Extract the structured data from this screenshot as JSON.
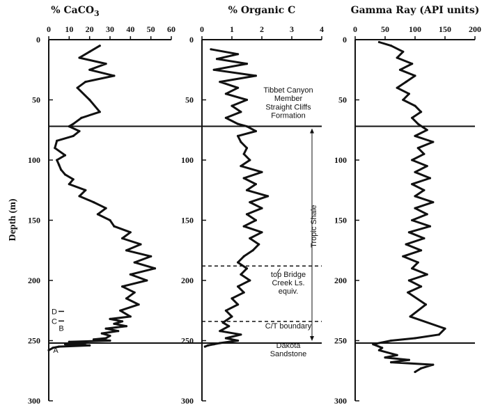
{
  "chart_data": [
    {
      "type": "line",
      "title": "% CaCO",
      "title_sub": "3",
      "ylabel": "Depth (m)",
      "xlim": [
        0,
        60
      ],
      "ylim": [
        300,
        0
      ],
      "xticks": [
        0,
        10,
        20,
        30,
        40,
        50,
        60
      ],
      "yticks": [
        0,
        50,
        100,
        150,
        200,
        250,
        300
      ],
      "series": [
        {
          "x": [
            25,
            20,
            15,
            28,
            20,
            32,
            18,
            14,
            20,
            25,
            16,
            12,
            10,
            15,
            12,
            4,
            3,
            8,
            4,
            5,
            6,
            8,
            12,
            10,
            18,
            15,
            22,
            28,
            24,
            30,
            32,
            40,
            36,
            45,
            38,
            50,
            42,
            52,
            40,
            48,
            36,
            42,
            38,
            44,
            35,
            40,
            30,
            36,
            32,
            38,
            28,
            34,
            26,
            30,
            28,
            22,
            30,
            10,
            18,
            8,
            20,
            5,
            2,
            0
          ],
          "y": [
            5,
            10,
            15,
            20,
            25,
            30,
            35,
            40,
            50,
            60,
            65,
            70,
            72,
            76,
            80,
            84,
            90,
            96,
            100,
            104,
            108,
            112,
            116,
            120,
            125,
            130,
            135,
            140,
            145,
            150,
            155,
            160,
            165,
            170,
            175,
            180,
            185,
            190,
            195,
            200,
            205,
            210,
            215,
            220,
            225,
            230,
            232,
            234,
            236,
            238,
            240,
            242,
            244,
            246,
            248,
            249,
            250,
            251,
            252,
            253,
            254,
            255,
            256,
            258
          ]
        }
      ],
      "labels": [
        {
          "text": "D",
          "depth": 228
        },
        {
          "text": "C",
          "depth": 236
        },
        {
          "text": "B",
          "depth": 242
        },
        {
          "text": "A",
          "depth": 260
        }
      ]
    },
    {
      "type": "line",
      "title": "% Organic C",
      "xlim": [
        0,
        4
      ],
      "ylim": [
        300,
        0
      ],
      "xticks": [
        0,
        1,
        2,
        3,
        4
      ],
      "yticks": [
        0,
        50,
        100,
        150,
        200,
        250,
        300
      ],
      "series": [
        {
          "x": [
            0.3,
            1.2,
            0.5,
            1.5,
            0.4,
            1.8,
            0.6,
            1.2,
            0.8,
            1.5,
            1.0,
            1.3,
            0.8,
            1.2,
            1.5,
            1.8,
            1.2,
            1.3,
            1.5,
            1.4,
            1.6,
            1.3,
            2.0,
            1.4,
            1.8,
            1.5,
            2.2,
            1.6,
            2.0,
            1.5,
            1.8,
            1.4,
            2.0,
            1.6,
            1.9,
            1.7,
            1.4,
            1.2,
            1.5,
            1.3,
            1.6,
            1.2,
            1.4,
            1.0,
            1.2,
            0.8,
            1.0,
            0.7,
            0.9,
            0.6,
            1.3,
            0.8,
            1.2,
            0.6,
            0.4,
            0.2,
            0.1
          ],
          "y": [
            8,
            12,
            16,
            20,
            25,
            30,
            35,
            40,
            45,
            50,
            55,
            60,
            65,
            70,
            72,
            76,
            80,
            85,
            90,
            95,
            100,
            105,
            110,
            115,
            120,
            125,
            130,
            135,
            140,
            145,
            150,
            155,
            160,
            165,
            170,
            175,
            180,
            185,
            190,
            195,
            200,
            205,
            210,
            215,
            220,
            225,
            230,
            235,
            238,
            242,
            245,
            248,
            250,
            252,
            253,
            254,
            255
          ]
        }
      ],
      "annotations": [
        {
          "text": "Tibbet Canyon",
          "depth": 44
        },
        {
          "text": "Member",
          "depth": 51
        },
        {
          "text": "Straight Cliffs",
          "depth": 58
        },
        {
          "text": "Formation",
          "depth": 65
        },
        {
          "text": "Tropic Shale",
          "depth": 155
        },
        {
          "text": "top Bridge",
          "depth": 197
        },
        {
          "text": "Creek Ls.",
          "depth": 204
        },
        {
          "text": "equiv.",
          "depth": 211
        },
        {
          "text": "C/T boundary",
          "depth": 240
        },
        {
          "text": "Dakota",
          "depth": 256
        },
        {
          "text": "Sandstone",
          "depth": 263
        }
      ]
    },
    {
      "type": "line",
      "title": "Gamma Ray (API units)",
      "xlim": [
        0,
        200
      ],
      "ylim": [
        300,
        0
      ],
      "xticks": [
        0,
        50,
        100,
        150,
        200
      ],
      "yticks": [
        0,
        50,
        100,
        150,
        200,
        250,
        300
      ],
      "series": [
        {
          "x": [
            40,
            60,
            80,
            70,
            95,
            75,
            100,
            85,
            70,
            90,
            80,
            100,
            110,
            95,
            105,
            120,
            100,
            130,
            105,
            115,
            95,
            120,
            100,
            125,
            95,
            115,
            100,
            130,
            100,
            120,
            95,
            125,
            90,
            115,
            85,
            110,
            80,
            105,
            95,
            120,
            90,
            110,
            88,
            118,
            92,
            150,
            140,
            100,
            60,
            30,
            45,
            40,
            70,
            50,
            90,
            60,
            130,
            110,
            100
          ],
          "y": [
            2,
            5,
            10,
            15,
            20,
            25,
            30,
            35,
            40,
            45,
            50,
            55,
            60,
            65,
            70,
            75,
            80,
            85,
            90,
            95,
            100,
            105,
            110,
            115,
            120,
            125,
            130,
            135,
            140,
            145,
            150,
            155,
            160,
            165,
            170,
            175,
            180,
            185,
            190,
            195,
            200,
            205,
            210,
            220,
            230,
            240,
            245,
            248,
            250,
            253,
            256,
            258,
            262,
            264,
            266,
            268,
            270,
            273,
            276
          ]
        }
      ]
    }
  ]
}
